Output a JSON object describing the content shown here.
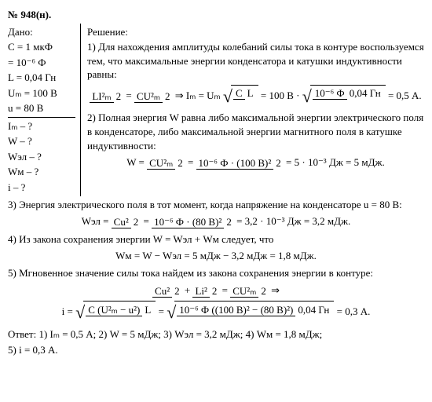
{
  "header": "№ 948(н).",
  "given": {
    "title": "Дано:",
    "lines1": [
      "C = 1 мкФ",
      "= 10⁻⁶ Ф",
      "L = 0,04 Гн",
      "Uₘ = 100 В",
      "u = 80 В"
    ],
    "lines2": [
      "Iₘ – ?",
      "W – ?",
      "Wэл – ?",
      "Wм – ?",
      "i – ?"
    ]
  },
  "sol": {
    "title": "Решение:",
    "p1": "1) Для нахождения амплитуды колебаний силы тока в контуре воспользуемся тем, что максимальные энергии конденсатора и катушки индуктивности равны:",
    "eq1_lhs_n": "LI²ₘ",
    "eq1_lhs_d": "2",
    "eq1_rhs_n": "CU²ₘ",
    "eq1_rhs_d": "2",
    "eq1_mid": " ⇒ Iₘ = Uₘ",
    "eq1_sq_n": "C",
    "eq1_sq_d": "L",
    "eq1_after": " = 100 В · ",
    "eq1_sq2_n": "10⁻⁶ Ф",
    "eq1_sq2_d": "0,04 Гн",
    "eq1_res": " = 0,5 А.",
    "p2": "2) Полная энергия W равна либо максимальной энергии электрического поля в конденсаторе, либо максимальной энергии магнитного поля в катушке индуктивности:",
    "eq2_a": "W = ",
    "eq2_n1": "CU²ₘ",
    "eq2_d1": "2",
    "eq2_n2": "10⁻⁶ Ф · (100 В)²",
    "eq2_d2": "2",
    "eq2_res": " = 5 · 10⁻³ Дж = 5 мДж.",
    "p3": "3) Энергия электрического поля в тот момент, когда напряжение на конденсаторе u = 80 В:",
    "eq3_a": "Wэл = ",
    "eq3_n1": "Cu²",
    "eq3_d1": "2",
    "eq3_n2": "10⁻⁶ Ф · (80 В)²",
    "eq3_d2": "2",
    "eq3_res": " = 3,2 · 10⁻³ Дж = 3,2 мДж.",
    "p4": "4) Из закона сохранения энергии W = Wэл + Wм следует, что",
    "eq4": "Wм = W − Wэл = 5 мДж − 3,2 мДж = 1,8 мДж.",
    "p5": "5) Мгновенное значение силы тока найдем из закона сохранения энергии в контуре:",
    "eq5a_n1": "Cu²",
    "eq5a_d1": "2",
    "eq5a_n2": "Li²",
    "eq5a_d2": "2",
    "eq5a_n3": "CU²ₘ",
    "eq5a_d3": "2",
    "eq5b_a": "i = ",
    "eq5b_sq1_n": "C (U²ₘ − u²)",
    "eq5b_sq1_d": "L",
    "eq5b_sq2_n": "10⁻⁶ Ф ((100 В)² − (80 В)²)",
    "eq5b_sq2_d": "0,04 Гн",
    "eq5b_res": " = 0,3 А.",
    "ans1": "Ответ: 1) Iₘ = 0,5 А; 2) W = 5 мДж; 3) Wэл = 3,2 мДж; 4) Wм = 1,8 мДж;",
    "ans2": "5) i = 0,3 А."
  }
}
